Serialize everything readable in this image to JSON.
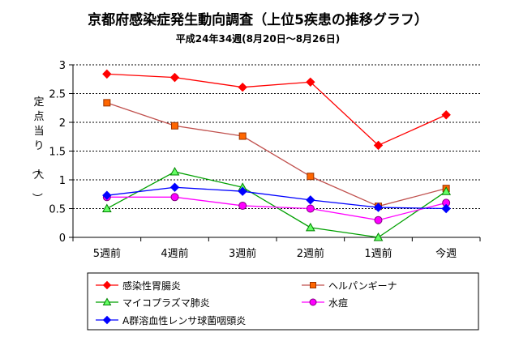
{
  "chart_data": {
    "type": "line",
    "title": "京都府感染症発生動向調査（上位5疾患の推移グラフ）",
    "subtitle": "平成24年34週(8月20日～8月26日)",
    "ylabel": "定点当り（人）",
    "categories": [
      "5週前",
      "4週前",
      "3週前",
      "2週前",
      "1週前",
      "今週"
    ],
    "ylim": [
      0,
      3
    ],
    "yticks": [
      "0",
      "0.5",
      "1",
      "1.5",
      "2",
      "2.5",
      "3"
    ],
    "grid": true,
    "legend_position": "bottom",
    "series": [
      {
        "name": "感染性胃腸炎",
        "color": "#ff0000",
        "marker": "diamond",
        "marker_fill": "#ff0000",
        "marker_stroke": "#ff0000",
        "values": [
          2.84,
          2.78,
          2.61,
          2.7,
          1.6,
          2.13
        ]
      },
      {
        "name": "ヘルパンギーナ",
        "color": "#c0504d",
        "marker": "square",
        "marker_fill": "#ff6600",
        "marker_stroke": "#993300",
        "values": [
          2.34,
          1.94,
          1.76,
          1.06,
          0.54,
          0.85
        ]
      },
      {
        "name": "マイコプラズマ肺炎",
        "color": "#00a000",
        "marker": "triangle",
        "marker_fill": "#66ff66",
        "marker_stroke": "#008000",
        "values": [
          0.5,
          1.14,
          0.87,
          0.17,
          0.0,
          0.8
        ]
      },
      {
        "name": "水痘",
        "color": "#ff00ff",
        "marker": "circle",
        "marker_fill": "#ff00ff",
        "marker_stroke": "#800080",
        "values": [
          0.7,
          0.7,
          0.55,
          0.5,
          0.3,
          0.6
        ]
      },
      {
        "name": "A群溶血性レンサ球菌咽頭炎",
        "color": "#0000ff",
        "marker": "diamond",
        "marker_fill": "#0000ff",
        "marker_stroke": "#0000ff",
        "values": [
          0.73,
          0.87,
          0.8,
          0.65,
          0.52,
          0.5
        ]
      }
    ]
  }
}
